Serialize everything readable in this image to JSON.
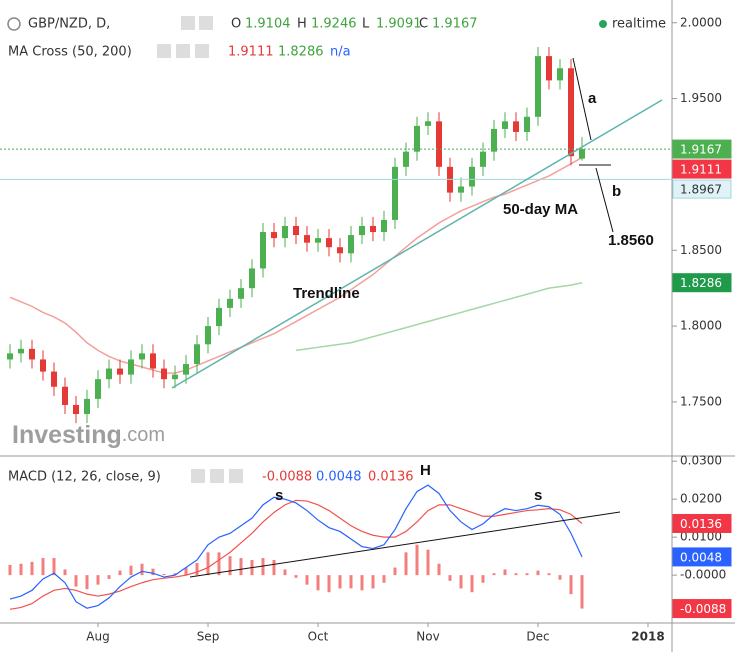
{
  "chart_data": [
    {
      "type": "candlestick",
      "title": "GBP/NZD, D,",
      "status": "realtime",
      "ohlc_letters": [
        "O",
        "H",
        "L",
        "C"
      ],
      "up_color": "#4caf50",
      "down_color": "#e53935",
      "open": [
        1.778,
        1.782,
        1.785,
        1.778,
        1.77,
        1.76,
        1.748,
        1.742,
        1.752,
        1.765,
        1.772,
        1.768,
        1.778,
        1.782,
        1.772,
        1.765,
        1.768,
        1.775,
        1.788,
        1.8,
        1.812,
        1.818,
        1.825,
        1.838,
        1.862,
        1.858,
        1.866,
        1.86,
        1.855,
        1.858,
        1.852,
        1.848,
        1.86,
        1.866,
        1.862,
        1.87,
        1.905,
        1.915,
        1.932,
        1.935,
        1.905,
        1.888,
        1.892,
        1.905,
        1.915,
        1.93,
        1.935,
        1.928,
        1.938,
        1.978,
        1.962,
        1.97,
        1.9104,
        null,
        null,
        null,
        null,
        null,
        null
      ],
      "high": [
        1.788,
        1.791,
        1.791,
        1.784,
        1.776,
        1.766,
        1.754,
        1.758,
        1.771,
        1.778,
        1.778,
        1.784,
        1.788,
        1.788,
        1.778,
        1.774,
        1.781,
        1.794,
        1.806,
        1.818,
        1.824,
        1.831,
        1.844,
        1.868,
        1.868,
        1.872,
        1.872,
        1.866,
        1.864,
        1.864,
        1.858,
        1.866,
        1.872,
        1.872,
        1.876,
        1.911,
        1.921,
        1.938,
        1.941,
        1.941,
        1.911,
        1.898,
        1.911,
        1.921,
        1.936,
        1.941,
        1.941,
        1.944,
        1.984,
        1.984,
        1.976,
        1.976,
        1.9246,
        null,
        null,
        null,
        null,
        null,
        null
      ],
      "low": [
        1.772,
        1.776,
        1.772,
        1.764,
        1.754,
        1.742,
        1.736,
        1.736,
        1.746,
        1.759,
        1.762,
        1.762,
        1.772,
        1.766,
        1.759,
        1.759,
        1.762,
        1.769,
        1.782,
        1.794,
        1.806,
        1.812,
        1.819,
        1.832,
        1.852,
        1.852,
        1.854,
        1.849,
        1.849,
        1.846,
        1.842,
        1.842,
        1.854,
        1.856,
        1.856,
        1.864,
        1.899,
        1.909,
        1.926,
        1.899,
        1.882,
        1.882,
        1.886,
        1.899,
        1.909,
        1.924,
        1.922,
        1.922,
        1.932,
        1.956,
        1.956,
        1.906,
        1.9091,
        null,
        null,
        null,
        null,
        null,
        null
      ],
      "close": [
        1.782,
        1.785,
        1.778,
        1.77,
        1.76,
        1.748,
        1.742,
        1.752,
        1.765,
        1.772,
        1.768,
        1.778,
        1.782,
        1.772,
        1.765,
        1.768,
        1.775,
        1.788,
        1.8,
        1.812,
        1.818,
        1.825,
        1.838,
        1.862,
        1.858,
        1.866,
        1.86,
        1.855,
        1.858,
        1.852,
        1.848,
        1.86,
        1.866,
        1.862,
        1.87,
        1.905,
        1.915,
        1.932,
        1.935,
        1.905,
        1.888,
        1.892,
        1.905,
        1.915,
        1.93,
        1.935,
        1.928,
        1.938,
        1.978,
        1.962,
        1.97,
        1.912,
        1.9167,
        null,
        null,
        null,
        null,
        null,
        null
      ],
      "indicator": "MA Cross (50, 200)",
      "indicator_status": "n/a",
      "overlays": [
        {
          "color": "#f4a09a",
          "values": [
            1.819,
            1.816,
            1.813,
            1.809,
            1.806,
            1.802,
            1.796,
            1.789,
            1.784,
            1.78,
            1.777,
            1.775,
            1.773,
            1.771,
            1.769,
            1.769,
            1.771,
            1.774,
            1.777,
            1.78,
            1.783,
            1.786,
            1.789,
            1.792,
            1.795,
            1.799,
            1.803,
            1.807,
            1.811,
            1.815,
            1.819,
            1.824,
            1.829,
            1.834,
            1.84,
            1.846,
            1.852,
            1.858,
            1.863,
            1.868,
            1.872,
            1.876,
            1.879,
            1.882,
            1.885,
            1.887,
            1.89,
            1.893,
            1.896,
            1.899,
            1.903,
            1.907,
            1.9111,
            null,
            null,
            null,
            null,
            null,
            null
          ]
        },
        {
          "color": "#a5d6a7",
          "values": [
            null,
            null,
            null,
            null,
            null,
            null,
            null,
            null,
            null,
            null,
            null,
            null,
            null,
            null,
            null,
            null,
            null,
            null,
            null,
            null,
            null,
            null,
            null,
            null,
            null,
            null,
            1.784,
            1.785,
            1.786,
            1.787,
            1.788,
            1.789,
            1.791,
            1.793,
            1.795,
            1.797,
            1.799,
            1.801,
            1.803,
            1.805,
            1.807,
            1.809,
            1.811,
            1.813,
            1.815,
            1.817,
            1.819,
            1.821,
            1.823,
            1.825,
            1.826,
            1.827,
            1.8286,
            null,
            null,
            null,
            null,
            null,
            null
          ]
        }
      ],
      "hline": {
        "value": 1.8967,
        "color": "#9fd8df"
      },
      "ylim": [
        1.715,
        2.015
      ],
      "yticks": [
        {
          "value": 2.0,
          "label": "2.0000"
        },
        {
          "value": 1.95,
          "label": "1.9500"
        },
        {
          "value": 1.85,
          "label": "1.8500"
        },
        {
          "value": 1.8,
          "label": "1.8000"
        },
        {
          "value": 1.75,
          "label": "1.7500"
        }
      ],
      "annotations": [
        "a",
        "b",
        "1.8560",
        "Trendline",
        "50-day MA"
      ],
      "watermark": "Investing",
      "watermark_suffix": ".com"
    },
    {
      "type": "macd",
      "title": "MACD (12, 26, close, 9)",
      "categories": [
        null,
        null,
        null,
        null,
        null,
        null,
        null,
        null,
        "Aug",
        null,
        null,
        null,
        null,
        null,
        null,
        null,
        null,
        null,
        "Sep",
        null,
        null,
        null,
        null,
        null,
        null,
        null,
        null,
        null,
        "Oct",
        null,
        null,
        null,
        null,
        null,
        null,
        null,
        null,
        null,
        "Nov",
        null,
        null,
        null,
        null,
        null,
        null,
        null,
        null,
        null,
        "Dec",
        null,
        null,
        null,
        null,
        null,
        null,
        null,
        null,
        null,
        "2018"
      ],
      "histogram": {
        "color": "#ef5350",
        "values": [
          0.0027,
          0.003,
          0.0035,
          0.0045,
          0.0045,
          0.0015,
          -0.003,
          -0.0037,
          -0.0025,
          -0.001,
          0.0012,
          0.0025,
          0.003,
          0.0017,
          0.0003,
          0.0005,
          0.002,
          0.0032,
          0.006,
          0.006,
          0.005,
          0.0045,
          0.004,
          0.0045,
          0.004,
          0.0015,
          -0.0007,
          -0.0025,
          -0.004,
          -0.0045,
          -0.0035,
          -0.0035,
          -0.004,
          -0.0035,
          -0.002,
          0.002,
          0.006,
          0.008,
          0.0067,
          0.003,
          -0.0015,
          -0.0035,
          -0.0045,
          -0.002,
          0.0005,
          0.0015,
          0.0005,
          0.0005,
          0.0012,
          0.0005,
          -0.0012,
          -0.005,
          -0.0088,
          null,
          null,
          null,
          null,
          null,
          null
        ]
      },
      "macd": {
        "color": "#2962ff",
        "values": [
          -0.0063,
          -0.0055,
          -0.004,
          -0.001,
          0.0005,
          -0.002,
          -0.007,
          -0.0087,
          -0.008,
          -0.006,
          -0.003,
          -0.0005,
          0.001,
          0.0005,
          -0.0005,
          0.0,
          0.002,
          0.004,
          0.008,
          0.01,
          0.011,
          0.013,
          0.015,
          0.0185,
          0.0205,
          0.02,
          0.019,
          0.017,
          0.0145,
          0.0125,
          0.0115,
          0.0095,
          0.0075,
          0.007,
          0.008,
          0.012,
          0.0175,
          0.022,
          0.0237,
          0.0215,
          0.017,
          0.014,
          0.012,
          0.0135,
          0.016,
          0.0175,
          0.017,
          0.0175,
          0.0184,
          0.018,
          0.016,
          0.011,
          0.0048,
          null,
          null,
          null,
          null,
          null,
          null
        ]
      },
      "signal": {
        "color": "#ef5350",
        "values": [
          -0.009,
          -0.0085,
          -0.0075,
          -0.0055,
          -0.004,
          -0.0035,
          -0.004,
          -0.005,
          -0.0055,
          -0.005,
          -0.0042,
          -0.003,
          -0.002,
          -0.0012,
          -0.0008,
          -0.0005,
          0.0,
          0.0008,
          0.002,
          0.004,
          0.006,
          0.0085,
          0.011,
          0.014,
          0.0165,
          0.0185,
          0.0197,
          0.0195,
          0.0185,
          0.017,
          0.015,
          0.013,
          0.0115,
          0.0105,
          0.01,
          0.01,
          0.0115,
          0.014,
          0.017,
          0.0185,
          0.0185,
          0.0175,
          0.0165,
          0.0155,
          0.0155,
          0.016,
          0.0165,
          0.017,
          0.0172,
          0.0175,
          0.0172,
          0.016,
          0.0136,
          null,
          null,
          null,
          null,
          null,
          null
        ]
      },
      "ylim": [
        -0.0126,
        0.0311
      ],
      "yticks": [
        {
          "value": 0.03,
          "label": "0.0300"
        },
        {
          "value": 0.02,
          "label": "0.0200"
        },
        {
          "value": 0.01,
          "label": "0.0100"
        },
        {
          "value": 0,
          "label": "-0.0000"
        }
      ],
      "annotations": [
        "s",
        "H",
        "s"
      ]
    }
  ]
}
